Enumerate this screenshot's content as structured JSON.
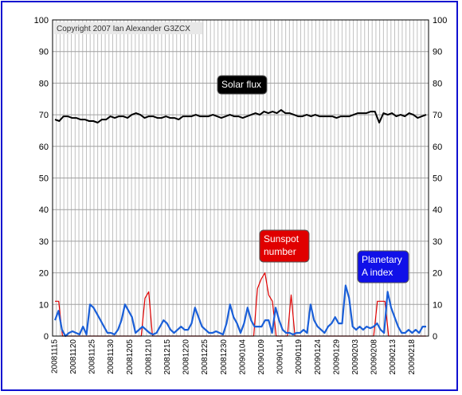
{
  "copyright": "Copyright 2007 Ian Alexander G3ZCX",
  "chart_data": {
    "type": "line",
    "xlabel": "",
    "ylabel": "",
    "ylim": [
      0,
      100
    ],
    "yticks": [
      0,
      10,
      20,
      30,
      40,
      50,
      60,
      70,
      80,
      90,
      100
    ],
    "x_start": "20081115",
    "x_end": "20090222",
    "xtick_labels": [
      "20081115",
      "20081120",
      "20081125",
      "20081130",
      "20081205",
      "20081210",
      "20081215",
      "20081220",
      "20081225",
      "20081230",
      "20090104",
      "20090109",
      "20090114",
      "20090119",
      "20090124",
      "20090129",
      "20090203",
      "20090208",
      "20090213",
      "20090218"
    ],
    "grid": true,
    "series": [
      {
        "name": "Solar flux",
        "label": "Solar flux",
        "color": "#000000",
        "label_bg": "#000000",
        "values": [
          68.5,
          68,
          69.5,
          69.5,
          69,
          69,
          68.5,
          68.5,
          68,
          68,
          67.5,
          68.5,
          68.5,
          69.5,
          69,
          69.5,
          69.5,
          69,
          70,
          70.5,
          70,
          69,
          69.5,
          69.5,
          69,
          69,
          69.5,
          69,
          69,
          68.5,
          69.5,
          69.5,
          69.5,
          70,
          69.5,
          69.5,
          69.5,
          70,
          69.5,
          69,
          69.5,
          70,
          69.5,
          69.5,
          69,
          69.5,
          70,
          70.5,
          70,
          71,
          70.5,
          71,
          70.5,
          71.5,
          70.5,
          70.5,
          70,
          69.5,
          69.5,
          70,
          69.5,
          70,
          69.5,
          69.5,
          69.5,
          69.5,
          69,
          69.5,
          69.5,
          69.5,
          70,
          70.5,
          70.5,
          70.5,
          71,
          71,
          67.5,
          70.5,
          70,
          70.5,
          69.5,
          70,
          69.5,
          70.5,
          70,
          69,
          69.5,
          70
        ]
      },
      {
        "name": "Sunspot number",
        "label": "Sunspot number",
        "color": "#e00000",
        "label_bg": "#e00000",
        "values": [
          11,
          11,
          0,
          0,
          0,
          0,
          0,
          0,
          0,
          0,
          0,
          0,
          0,
          0,
          0,
          0,
          0,
          0,
          0,
          0,
          0,
          0,
          0,
          0,
          12,
          14,
          0,
          0,
          0,
          0,
          0,
          0,
          0,
          0,
          0,
          0,
          0,
          0,
          0,
          0,
          0,
          0,
          0,
          0,
          0,
          0,
          0,
          0,
          0,
          0,
          0,
          0,
          0,
          0,
          15,
          18,
          20,
          13,
          11,
          0,
          0,
          0,
          0,
          13,
          0,
          0,
          0,
          0,
          0,
          0,
          0,
          0,
          0,
          0,
          0,
          0,
          0,
          0,
          0,
          0,
          0,
          0,
          0,
          0,
          0,
          0,
          11,
          11,
          11,
          0,
          0,
          0,
          0,
          0,
          0,
          0,
          0,
          0,
          0,
          0
        ]
      },
      {
        "name": "Planetary A index",
        "label": "Planetary A index",
        "color": "#1a5fd8",
        "label_bg": "#1010e8",
        "values": [
          5,
          8,
          2,
          0,
          1,
          1.5,
          1,
          0.5,
          3,
          0.5,
          10,
          9,
          7,
          5,
          3,
          1,
          1,
          0.5,
          2,
          5,
          10,
          8,
          6,
          1,
          2,
          3,
          2,
          1,
          0.5,
          1,
          3,
          5,
          4,
          2,
          1,
          2,
          3,
          2,
          2,
          4,
          9,
          6,
          3,
          2,
          1,
          1,
          1.5,
          1,
          0.5,
          4,
          10,
          6,
          4,
          1,
          4,
          9,
          5,
          3,
          3,
          3,
          5,
          5,
          1,
          9,
          5,
          2,
          1,
          1,
          0.5,
          1,
          1,
          2,
          1,
          10,
          5,
          3,
          2,
          1,
          3,
          4,
          6,
          4,
          4,
          16,
          12,
          3,
          2,
          3,
          2,
          3,
          2.5,
          3,
          4,
          2,
          1,
          14,
          9,
          6,
          3,
          1,
          1,
          2,
          1,
          2,
          1,
          3,
          3
        ]
      }
    ]
  }
}
